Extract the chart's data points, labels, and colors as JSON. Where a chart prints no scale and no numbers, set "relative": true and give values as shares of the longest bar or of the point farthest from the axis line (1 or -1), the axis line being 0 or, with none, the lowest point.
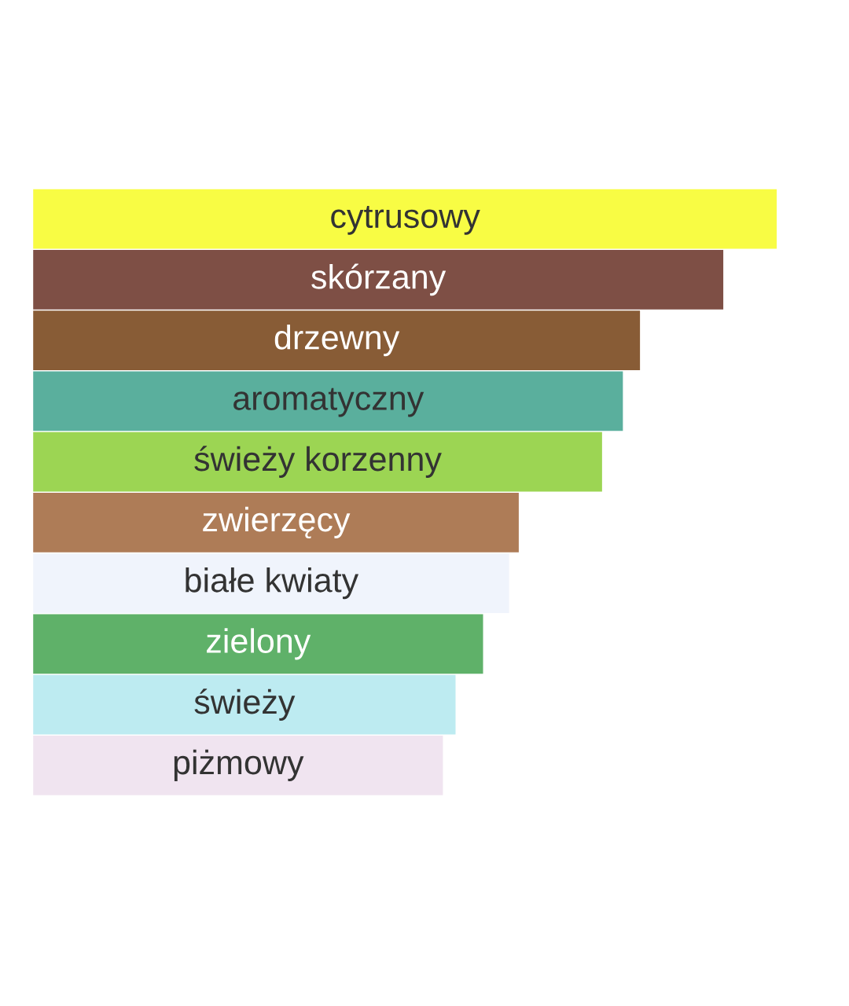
{
  "chart_data": {
    "type": "bar",
    "orientation": "horizontal",
    "relative": true,
    "categories": [
      "cytrusowy",
      "skórzany",
      "drzewny",
      "aromatyczny",
      "świeży korzenny",
      "zwierzęcy",
      "białe kwiaty",
      "zielony",
      "świeży",
      "piżmowy"
    ],
    "values": [
      1,
      0.928,
      0.816,
      0.793,
      0.765,
      0.653,
      0.64,
      0.605,
      0.568,
      0.551
    ],
    "colors": [
      "#f8fc44",
      "#7e4f45",
      "#885c36",
      "#5aaf9d",
      "#9cd553",
      "#ae7c57",
      "#f0f4fc",
      "#5fb169",
      "#bdebf1",
      "#f0e4f0"
    ]
  }
}
